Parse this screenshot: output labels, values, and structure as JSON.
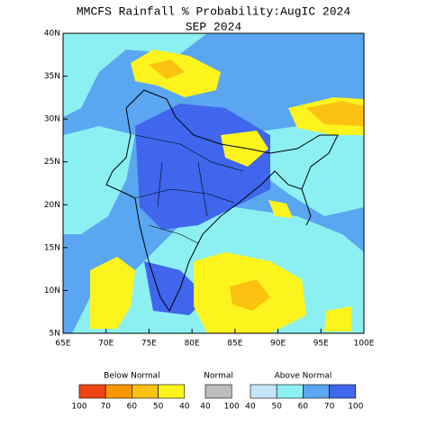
{
  "header": {
    "title": "MMCFS Rainfall % Probability:AugIC 2024",
    "subtitle": "SEP 2024"
  },
  "map": {
    "lon_range": [
      65,
      100
    ],
    "lat_range": [
      5,
      40
    ],
    "lon_ticks": [
      {
        "value": 65,
        "label": "65E"
      },
      {
        "value": 70,
        "label": "70E"
      },
      {
        "value": 75,
        "label": "75E"
      },
      {
        "value": 80,
        "label": "80E"
      },
      {
        "value": 85,
        "label": "85E"
      },
      {
        "value": 90,
        "label": "90E"
      },
      {
        "value": 95,
        "label": "95E"
      },
      {
        "value": 100,
        "label": "100E"
      }
    ],
    "lat_ticks": [
      {
        "value": 40,
        "label": "40N"
      },
      {
        "value": 35,
        "label": "35N"
      },
      {
        "value": 30,
        "label": "30N"
      },
      {
        "value": 25,
        "label": "25N"
      },
      {
        "value": 20,
        "label": "20N"
      },
      {
        "value": 15,
        "label": "15N"
      },
      {
        "value": 10,
        "label": "10N"
      },
      {
        "value": 5,
        "label": "5N"
      }
    ]
  },
  "legend": [
    {
      "title": "Below Normal",
      "labels": [
        100,
        70,
        60,
        50,
        40
      ],
      "colors": [
        "#ee4416",
        "#fb9606",
        "#fcc212",
        "#fdf41e"
      ]
    },
    {
      "title": "Normal",
      "labels": [
        40,
        100
      ],
      "colors": [
        "#bdbdbd"
      ]
    },
    {
      "title": "Above Normal",
      "labels": [
        40,
        50,
        60,
        70,
        100
      ],
      "colors": [
        "#c6e4fa",
        "#8cf0f2",
        "#5aa6f0",
        "#3f66ec"
      ]
    }
  ]
}
